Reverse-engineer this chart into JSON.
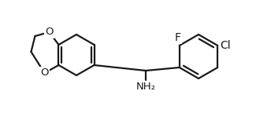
{
  "line_color": "#1a1a1a",
  "line_width": 1.6,
  "bg_color": "#ffffff",
  "F_label": "F",
  "Cl_label": "Cl",
  "O_labels": [
    "O",
    "O"
  ],
  "NH2_label": "NH₂",
  "font_size": 9.5,
  "figsize": [
    3.44,
    1.44
  ],
  "dpi": 100
}
